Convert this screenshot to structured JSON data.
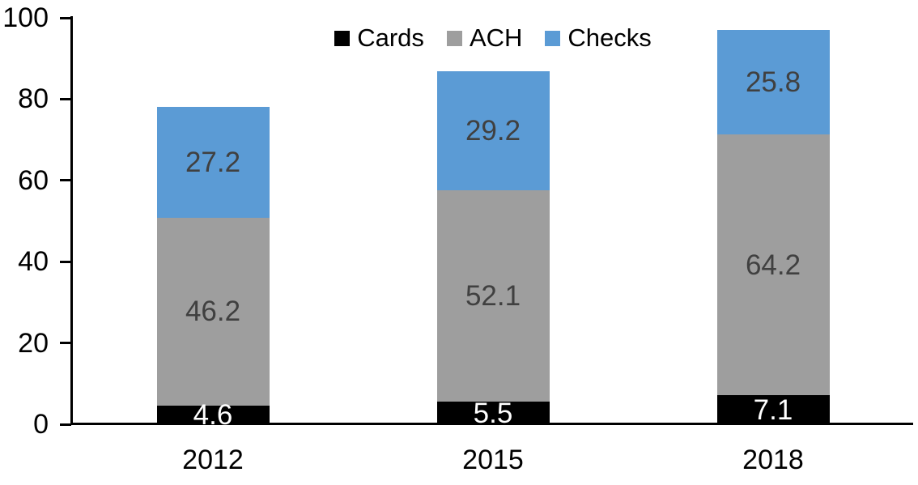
{
  "chart_data": {
    "type": "bar",
    "stacked": true,
    "title": "",
    "xlabel": "",
    "ylabel": "",
    "categories": [
      "2012",
      "2015",
      "2018"
    ],
    "series": [
      {
        "name": "Cards",
        "color": "#000000",
        "label_color": "#ffffff",
        "values": [
          4.6,
          5.5,
          7.1
        ]
      },
      {
        "name": "ACH",
        "color": "#9e9e9e",
        "label_color": "#404040",
        "values": [
          46.2,
          52.1,
          64.2
        ]
      },
      {
        "name": "Checks",
        "color": "#5b9bd5",
        "label_color": "#404040",
        "values": [
          27.2,
          29.2,
          25.8
        ]
      }
    ],
    "ylim": [
      0,
      100
    ],
    "yticks": [
      0,
      20,
      40,
      60,
      80,
      100
    ],
    "legend_position": "top",
    "legend_labels": [
      "Cards",
      "ACH",
      "Checks"
    ],
    "grid": false,
    "axis_color": "#000000",
    "background_color": "#ffffff"
  }
}
